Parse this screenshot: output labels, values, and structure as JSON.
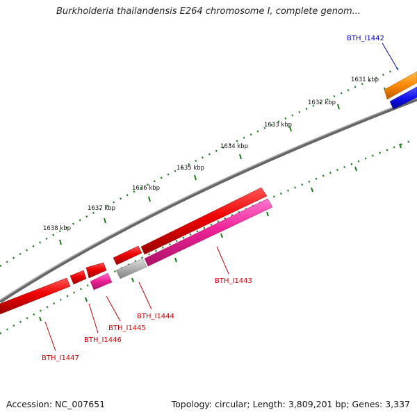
{
  "title": "Burkholderia thailandensis E264 chromosome I, complete genom...",
  "footer": {
    "accession": "Accession: NC_007651",
    "stats": "Topology: circular; Length: 3,809,201 bp; Genes: 3,337"
  },
  "colors": {
    "backbone": "#808080",
    "tick": "#1a7a1a",
    "gene_red": "#ee0000",
    "gene_pink": "#ee2299",
    "gene_grey": "#b0b0b0",
    "gene_orange": "#ff8800",
    "gene_blue": "#1111ee",
    "label_red": "#cc0000",
    "label_blue": "#0000cc"
  },
  "kbp_labels": [
    "1631 kbp",
    "1632 kbp",
    "1633 kbp",
    "1634 kbp",
    "1635 kbp",
    "1636 kbp",
    "1637 kbp",
    "1638 kbp"
  ],
  "gene_labels": [
    {
      "id": "BTH_I1442",
      "color": "blue"
    },
    {
      "id": "BTH_I1443",
      "color": "red"
    },
    {
      "id": "BTH_I1444",
      "color": "red"
    },
    {
      "id": "BTH_I1445",
      "color": "red"
    },
    {
      "id": "BTH_I1446",
      "color": "red"
    },
    {
      "id": "BTH_I1447",
      "color": "red"
    }
  ]
}
